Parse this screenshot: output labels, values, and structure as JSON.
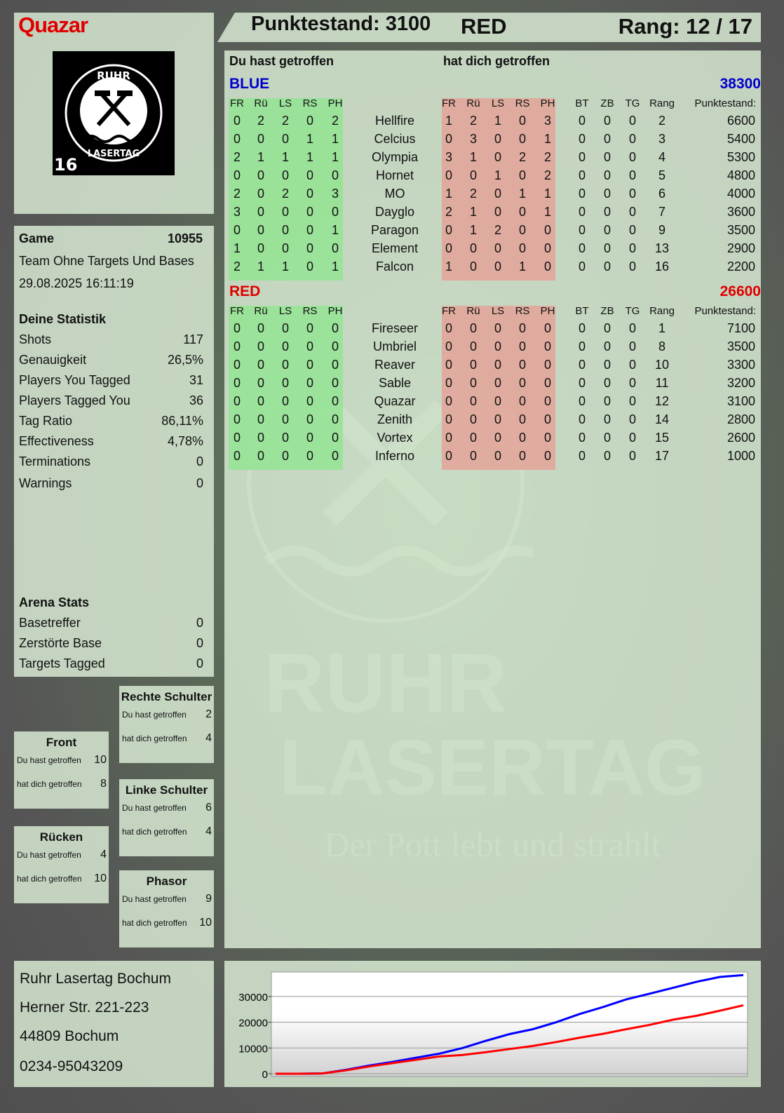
{
  "player": {
    "name": "Quazar",
    "logo_text": [
      "RUHR",
      "LASERTAG",
      "16"
    ]
  },
  "header": {
    "score_label": "Punktestand: 3100",
    "team": "RED",
    "rank_label": "Rang: 12 / 17"
  },
  "game": {
    "label": "Game",
    "id": "10955",
    "mode": "Team Ohne Targets Und Bases",
    "datetime": "29.08.2025 16:11:19"
  },
  "stats": {
    "title": "Deine Statistik",
    "items": [
      {
        "label": "Shots",
        "value": "117"
      },
      {
        "label": "Genauigkeit",
        "value": "26,5%"
      },
      {
        "label": "Players You Tagged",
        "value": "31"
      },
      {
        "label": "Players Tagged You",
        "value": "36"
      },
      {
        "label": "Tag Ratio",
        "value": "86,11%"
      },
      {
        "label": "Effectiveness",
        "value": "4,78%"
      },
      {
        "label": "Terminations",
        "value": "0"
      },
      {
        "label": "Warnings",
        "value": "0"
      }
    ]
  },
  "arena": {
    "title": "Arena Stats",
    "items": [
      {
        "label": "Basetreffer",
        "value": "0"
      },
      {
        "label": "Zerstörte Base",
        "value": "0"
      },
      {
        "label": "Targets Tagged",
        "value": "0"
      }
    ]
  },
  "zones": [
    {
      "title": "Rechte Schulter",
      "hit_label": "Du hast getroffen",
      "hit": "2",
      "got_label": "hat dich getroffen",
      "got": "4"
    },
    {
      "title": "Front",
      "hit_label": "Du hast getroffen",
      "hit": "10",
      "got_label": "hat dich getroffen",
      "got": "8"
    },
    {
      "title": "Linke Schulter",
      "hit_label": "Du hast getroffen",
      "hit": "6",
      "got_label": "hat dich getroffen",
      "got": "4"
    },
    {
      "title": "Rücken",
      "hit_label": "Du hast getroffen",
      "hit": "4",
      "got_label": "hat dich getroffen",
      "got": "10"
    },
    {
      "title": "Phasor",
      "hit_label": "Du hast getroffen",
      "hit": "9",
      "got_label": "hat dich getroffen",
      "got": "10"
    }
  ],
  "address": [
    "Ruhr Lasertag Bochum",
    "Herner Str. 221-223",
    "44809 Bochum",
    "0234-95043209"
  ],
  "table": {
    "hit_title": "Du hast getroffen",
    "got_title": "hat dich getroffen",
    "hit_cols": [
      "FR",
      "Rü",
      "LS",
      "RS",
      "PH"
    ],
    "extra_cols": [
      "BT",
      "ZB",
      "TG",
      "Rang"
    ],
    "score_col": "Punktestand:",
    "teams": [
      {
        "name": "BLUE",
        "color": "#0000cc",
        "score": "38300",
        "players": [
          {
            "name": "Hellfire",
            "hit": [
              "0",
              "2",
              "2",
              "0",
              "2"
            ],
            "got": [
              "1",
              "2",
              "1",
              "0",
              "3"
            ],
            "extra": [
              "0",
              "0",
              "0",
              "2"
            ],
            "score": "6600"
          },
          {
            "name": "Celcius",
            "hit": [
              "0",
              "0",
              "0",
              "1",
              "1"
            ],
            "got": [
              "0",
              "3",
              "0",
              "0",
              "1"
            ],
            "extra": [
              "0",
              "0",
              "0",
              "3"
            ],
            "score": "5400"
          },
          {
            "name": "Olympia",
            "hit": [
              "2",
              "1",
              "1",
              "1",
              "1"
            ],
            "got": [
              "3",
              "1",
              "0",
              "2",
              "2"
            ],
            "extra": [
              "0",
              "0",
              "0",
              "4"
            ],
            "score": "5300"
          },
          {
            "name": "Hornet",
            "hit": [
              "0",
              "0",
              "0",
              "0",
              "0"
            ],
            "got": [
              "0",
              "0",
              "1",
              "0",
              "2"
            ],
            "extra": [
              "0",
              "0",
              "0",
              "5"
            ],
            "score": "4800"
          },
          {
            "name": "MO",
            "hit": [
              "2",
              "0",
              "2",
              "0",
              "3"
            ],
            "got": [
              "1",
              "2",
              "0",
              "1",
              "1"
            ],
            "extra": [
              "0",
              "0",
              "0",
              "6"
            ],
            "score": "4000"
          },
          {
            "name": "Dayglo",
            "hit": [
              "3",
              "0",
              "0",
              "0",
              "0"
            ],
            "got": [
              "2",
              "1",
              "0",
              "0",
              "1"
            ],
            "extra": [
              "0",
              "0",
              "0",
              "7"
            ],
            "score": "3600"
          },
          {
            "name": "Paragon",
            "hit": [
              "0",
              "0",
              "0",
              "0",
              "1"
            ],
            "got": [
              "0",
              "1",
              "2",
              "0",
              "0"
            ],
            "extra": [
              "0",
              "0",
              "0",
              "9"
            ],
            "score": "3500"
          },
          {
            "name": "Element",
            "hit": [
              "1",
              "0",
              "0",
              "0",
              "0"
            ],
            "got": [
              "0",
              "0",
              "0",
              "0",
              "0"
            ],
            "extra": [
              "0",
              "0",
              "0",
              "13"
            ],
            "score": "2900"
          },
          {
            "name": "Falcon",
            "hit": [
              "2",
              "1",
              "1",
              "0",
              "1"
            ],
            "got": [
              "1",
              "0",
              "0",
              "1",
              "0"
            ],
            "extra": [
              "0",
              "0",
              "0",
              "16"
            ],
            "score": "2200"
          }
        ]
      },
      {
        "name": "RED",
        "color": "#e00000",
        "score": "26600",
        "players": [
          {
            "name": "Fireseer",
            "hit": [
              "0",
              "0",
              "0",
              "0",
              "0"
            ],
            "got": [
              "0",
              "0",
              "0",
              "0",
              "0"
            ],
            "extra": [
              "0",
              "0",
              "0",
              "1"
            ],
            "score": "7100"
          },
          {
            "name": "Umbriel",
            "hit": [
              "0",
              "0",
              "0",
              "0",
              "0"
            ],
            "got": [
              "0",
              "0",
              "0",
              "0",
              "0"
            ],
            "extra": [
              "0",
              "0",
              "0",
              "8"
            ],
            "score": "3500"
          },
          {
            "name": "Reaver",
            "hit": [
              "0",
              "0",
              "0",
              "0",
              "0"
            ],
            "got": [
              "0",
              "0",
              "0",
              "0",
              "0"
            ],
            "extra": [
              "0",
              "0",
              "0",
              "10"
            ],
            "score": "3300"
          },
          {
            "name": "Sable",
            "hit": [
              "0",
              "0",
              "0",
              "0",
              "0"
            ],
            "got": [
              "0",
              "0",
              "0",
              "0",
              "0"
            ],
            "extra": [
              "0",
              "0",
              "0",
              "11"
            ],
            "score": "3200"
          },
          {
            "name": "Quazar",
            "hit": [
              "0",
              "0",
              "0",
              "0",
              "0"
            ],
            "got": [
              "0",
              "0",
              "0",
              "0",
              "0"
            ],
            "extra": [
              "0",
              "0",
              "0",
              "12"
            ],
            "score": "3100"
          },
          {
            "name": "Zenith",
            "hit": [
              "0",
              "0",
              "0",
              "0",
              "0"
            ],
            "got": [
              "0",
              "0",
              "0",
              "0",
              "0"
            ],
            "extra": [
              "0",
              "0",
              "0",
              "14"
            ],
            "score": "2800"
          },
          {
            "name": "Vortex",
            "hit": [
              "0",
              "0",
              "0",
              "0",
              "0"
            ],
            "got": [
              "0",
              "0",
              "0",
              "0",
              "0"
            ],
            "extra": [
              "0",
              "0",
              "0",
              "15"
            ],
            "score": "2600"
          },
          {
            "name": "Inferno",
            "hit": [
              "0",
              "0",
              "0",
              "0",
              "0"
            ],
            "got": [
              "0",
              "0",
              "0",
              "0",
              "0"
            ],
            "extra": [
              "0",
              "0",
              "0",
              "17"
            ],
            "score": "1000"
          }
        ]
      }
    ]
  },
  "watermark": {
    "line1": "RUHR",
    "line2": "LASERTAG",
    "slogan": "Der Pott lebt und strahlt"
  },
  "chart_data": {
    "type": "line",
    "ylim": [
      0,
      39500
    ],
    "yticks": [
      "0",
      "10000",
      "20000",
      "30000"
    ],
    "grid": true,
    "series": [
      {
        "color": "#0000ff",
        "values": [
          0,
          0,
          100,
          1500,
          3200,
          4600,
          6200,
          7800,
          10000,
          12800,
          15400,
          17300,
          20000,
          23200,
          25900,
          28900,
          31100,
          33400,
          35700,
          37600,
          38300
        ]
      },
      {
        "color": "#ff0000",
        "values": [
          0,
          0,
          100,
          1300,
          2800,
          4100,
          5400,
          6700,
          7300,
          8400,
          9600,
          10800,
          12300,
          14000,
          15500,
          17300,
          19000,
          21000,
          22500,
          24500,
          26600
        ]
      }
    ]
  }
}
